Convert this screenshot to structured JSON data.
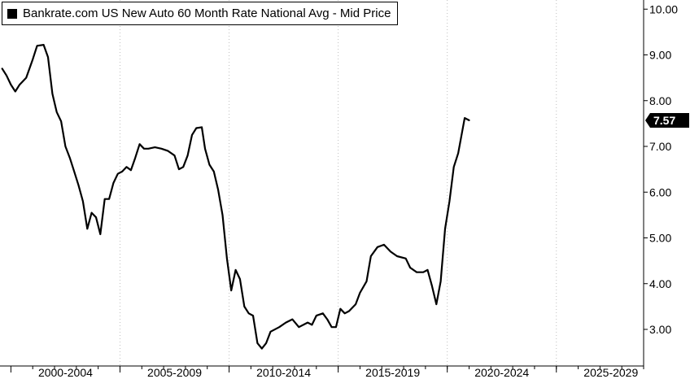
{
  "chart_data": {
    "type": "line",
    "legend": {
      "label": "Bankrate.com US New Auto 60 Month Rate National Avg - Mid Price",
      "position": "top-left",
      "swatch_color": "#000000"
    },
    "x_tick_labels": [
      "2000-2004",
      "2005-2009",
      "2010-2014",
      "2015-2019",
      "2020-2024",
      "2025-2029"
    ],
    "x_range": [
      1999.5,
      2029.0
    ],
    "y_tick_labels": [
      "3.00",
      "4.00",
      "5.00",
      "6.00",
      "7.00",
      "8.00",
      "9.00",
      "10.00"
    ],
    "y_range": [
      2.2,
      10.2
    ],
    "grid": "vertical dotted",
    "last_value_label": "7.57",
    "series": [
      {
        "color": "#000000",
        "points": [
          [
            1999.6,
            8.7
          ],
          [
            1999.8,
            8.55
          ],
          [
            2000.0,
            8.35
          ],
          [
            2000.2,
            8.2
          ],
          [
            2000.4,
            8.35
          ],
          [
            2000.7,
            8.5
          ],
          [
            2001.0,
            8.9
          ],
          [
            2001.2,
            9.2
          ],
          [
            2001.5,
            9.22
          ],
          [
            2001.7,
            8.95
          ],
          [
            2001.9,
            8.15
          ],
          [
            2002.1,
            7.75
          ],
          [
            2002.3,
            7.55
          ],
          [
            2002.5,
            7.0
          ],
          [
            2002.7,
            6.75
          ],
          [
            2002.9,
            6.45
          ],
          [
            2003.1,
            6.15
          ],
          [
            2003.3,
            5.8
          ],
          [
            2003.5,
            5.2
          ],
          [
            2003.7,
            5.55
          ],
          [
            2003.9,
            5.45
          ],
          [
            2004.1,
            5.08
          ],
          [
            2004.3,
            5.85
          ],
          [
            2004.5,
            5.85
          ],
          [
            2004.7,
            6.2
          ],
          [
            2004.9,
            6.4
          ],
          [
            2005.1,
            6.45
          ],
          [
            2005.3,
            6.55
          ],
          [
            2005.5,
            6.48
          ],
          [
            2005.7,
            6.75
          ],
          [
            2005.9,
            7.05
          ],
          [
            2006.1,
            6.95
          ],
          [
            2006.3,
            6.95
          ],
          [
            2006.6,
            6.98
          ],
          [
            2006.9,
            6.95
          ],
          [
            2007.2,
            6.9
          ],
          [
            2007.5,
            6.8
          ],
          [
            2007.7,
            6.5
          ],
          [
            2007.9,
            6.55
          ],
          [
            2008.1,
            6.8
          ],
          [
            2008.3,
            7.25
          ],
          [
            2008.5,
            7.4
          ],
          [
            2008.75,
            7.42
          ],
          [
            2008.9,
            6.95
          ],
          [
            2009.1,
            6.6
          ],
          [
            2009.3,
            6.45
          ],
          [
            2009.5,
            6.05
          ],
          [
            2009.7,
            5.5
          ],
          [
            2009.9,
            4.55
          ],
          [
            2010.1,
            3.85
          ],
          [
            2010.3,
            4.3
          ],
          [
            2010.5,
            4.1
          ],
          [
            2010.7,
            3.5
          ],
          [
            2010.9,
            3.35
          ],
          [
            2011.1,
            3.3
          ],
          [
            2011.3,
            2.7
          ],
          [
            2011.5,
            2.58
          ],
          [
            2011.7,
            2.7
          ],
          [
            2011.9,
            2.95
          ],
          [
            2012.3,
            3.05
          ],
          [
            2012.6,
            3.15
          ],
          [
            2012.9,
            3.22
          ],
          [
            2013.2,
            3.05
          ],
          [
            2013.6,
            3.15
          ],
          [
            2013.8,
            3.1
          ],
          [
            2014.0,
            3.3
          ],
          [
            2014.3,
            3.35
          ],
          [
            2014.5,
            3.22
          ],
          [
            2014.7,
            3.05
          ],
          [
            2014.9,
            3.05
          ],
          [
            2015.1,
            3.45
          ],
          [
            2015.3,
            3.35
          ],
          [
            2015.5,
            3.4
          ],
          [
            2015.8,
            3.55
          ],
          [
            2016.0,
            3.8
          ],
          [
            2016.3,
            4.05
          ],
          [
            2016.5,
            4.6
          ],
          [
            2016.8,
            4.8
          ],
          [
            2017.1,
            4.85
          ],
          [
            2017.4,
            4.7
          ],
          [
            2017.7,
            4.6
          ],
          [
            2018.1,
            4.55
          ],
          [
            2018.3,
            4.35
          ],
          [
            2018.6,
            4.25
          ],
          [
            2018.9,
            4.25
          ],
          [
            2019.1,
            4.3
          ],
          [
            2019.3,
            3.95
          ],
          [
            2019.5,
            3.55
          ],
          [
            2019.7,
            4.05
          ],
          [
            2019.9,
            5.2
          ],
          [
            2020.1,
            5.8
          ],
          [
            2020.3,
            6.55
          ],
          [
            2020.5,
            6.85
          ],
          [
            2020.8,
            7.62
          ],
          [
            2021.0,
            7.57
          ]
        ]
      }
    ]
  }
}
